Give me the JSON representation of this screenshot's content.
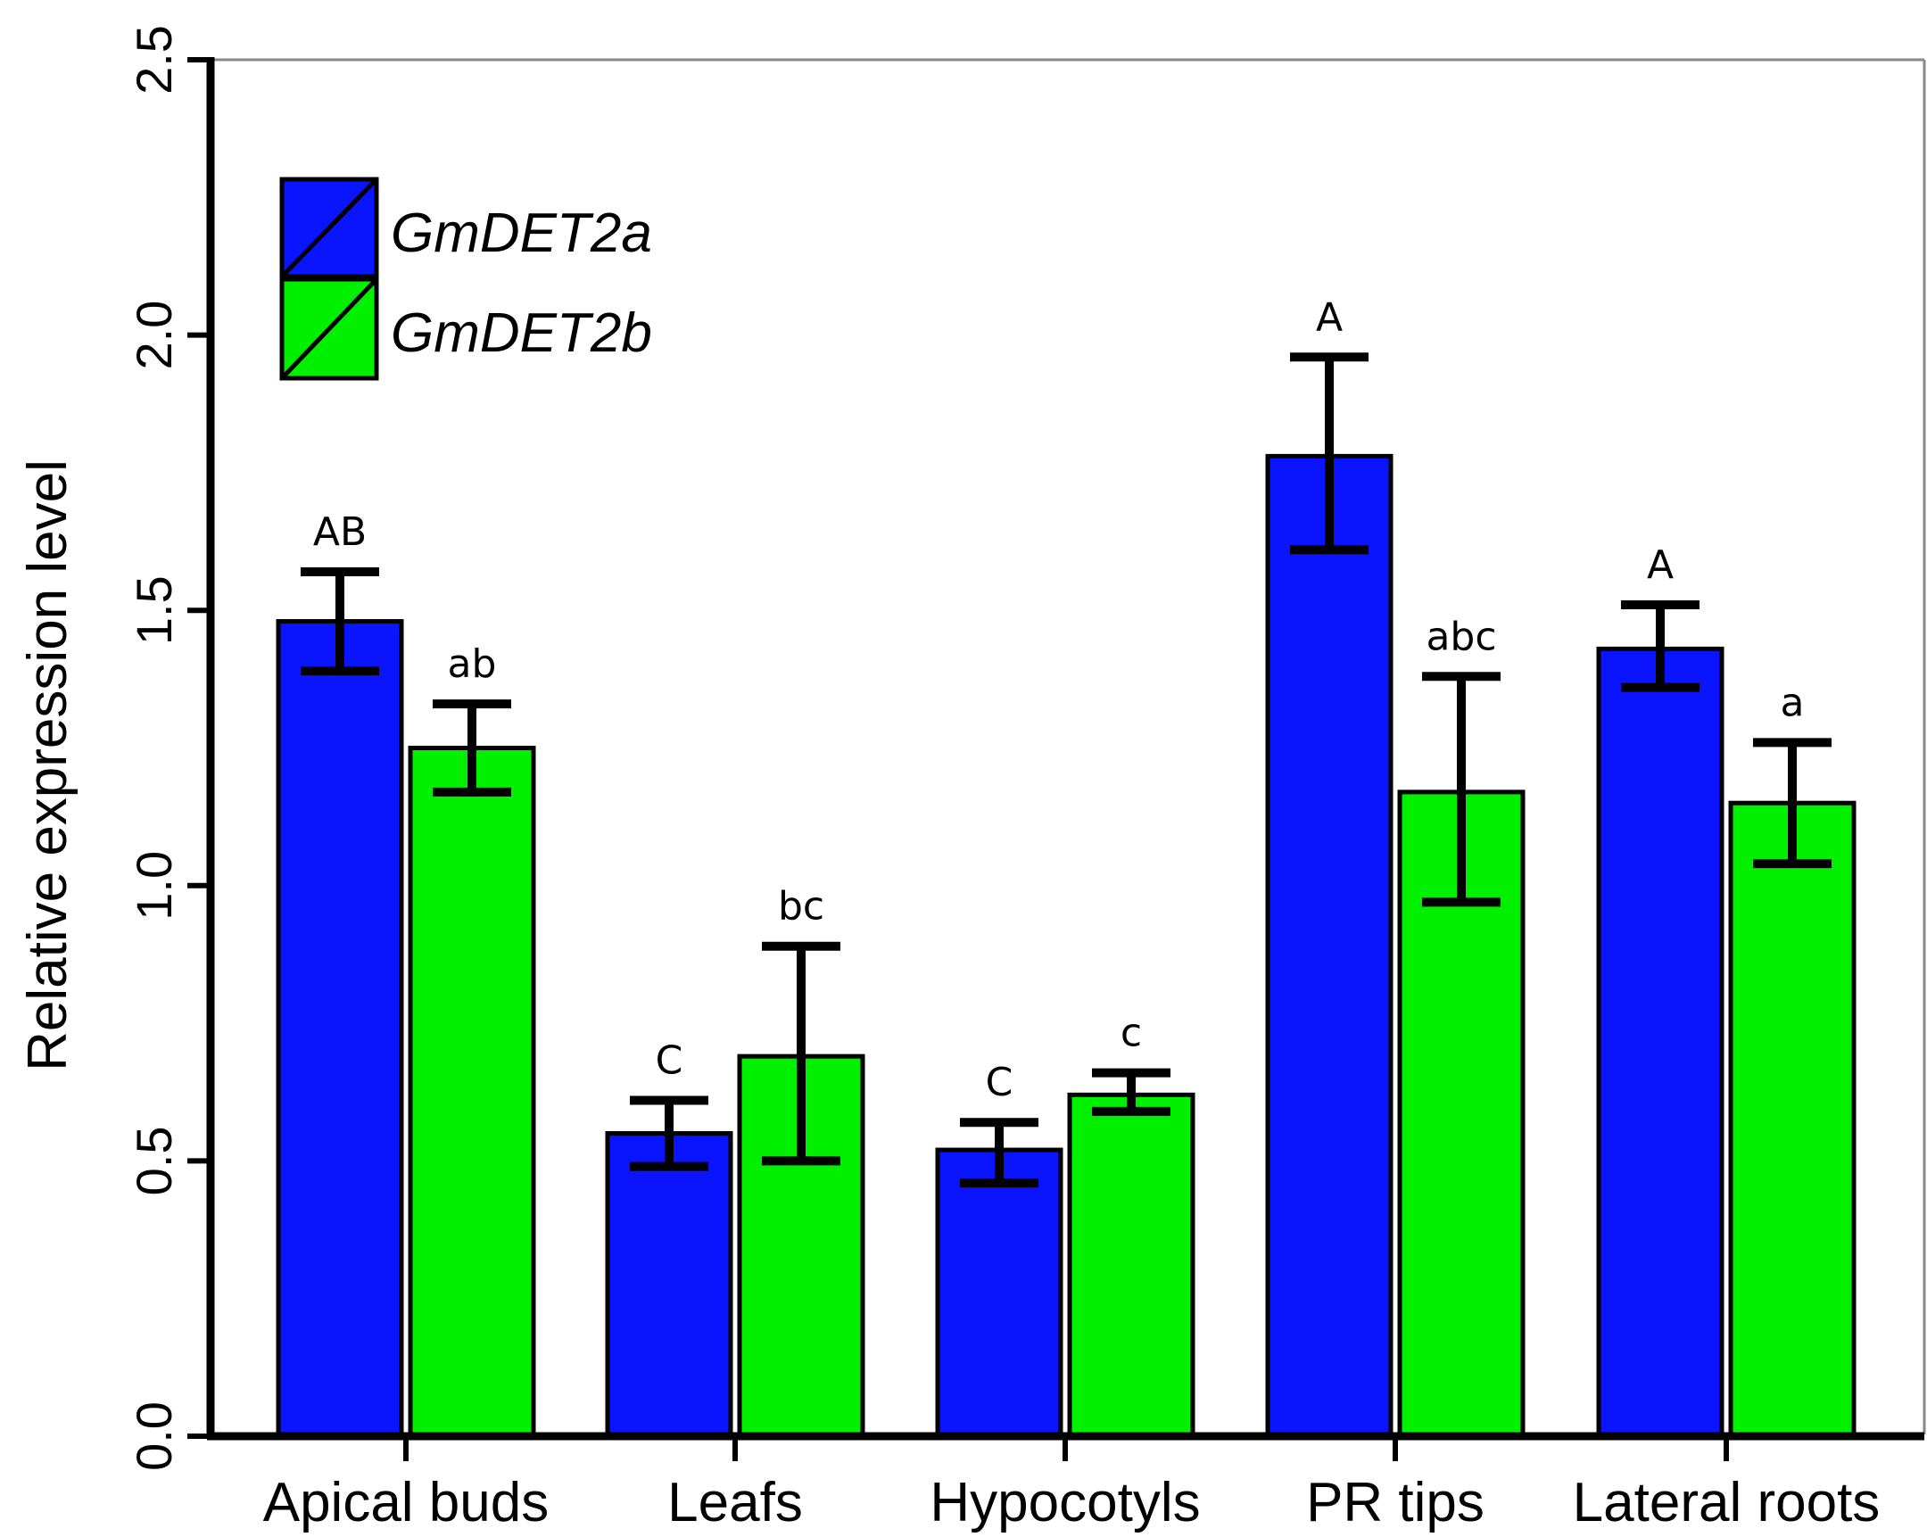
{
  "chart_data": {
    "type": "bar",
    "title": "",
    "xlabel": "",
    "ylabel": "Relative expression level",
    "ylim": [
      0,
      2.5
    ],
    "yticks": [
      0.0,
      0.5,
      1.0,
      1.5,
      2.0,
      2.5
    ],
    "ytick_labels": [
      "0.0",
      "0.5",
      "1.0",
      "1.5",
      "2.0",
      "2.5"
    ],
    "categories": [
      "Apical buds",
      "Leafs",
      "Hypocotyls",
      "PR tips",
      "Lateral roots"
    ],
    "legend_position": "top-left",
    "series": [
      {
        "name": "GmDET2a",
        "color": "#0a14ff",
        "values": [
          1.48,
          0.55,
          0.52,
          1.78,
          1.43
        ],
        "err_low": [
          1.39,
          0.49,
          0.46,
          1.61,
          1.36
        ],
        "err_high": [
          1.57,
          0.61,
          0.57,
          1.96,
          1.51
        ],
        "significance": [
          "AB",
          "C",
          "C",
          "A",
          "A"
        ]
      },
      {
        "name": "GmDET2b",
        "color": "#00f000",
        "values": [
          1.25,
          0.69,
          0.62,
          1.17,
          1.15
        ],
        "err_low": [
          1.17,
          0.5,
          0.59,
          0.97,
          1.04
        ],
        "err_high": [
          1.33,
          0.89,
          0.66,
          1.38,
          1.26
        ],
        "significance": [
          "ab",
          "bc",
          "c",
          "abc",
          "a"
        ]
      }
    ]
  }
}
